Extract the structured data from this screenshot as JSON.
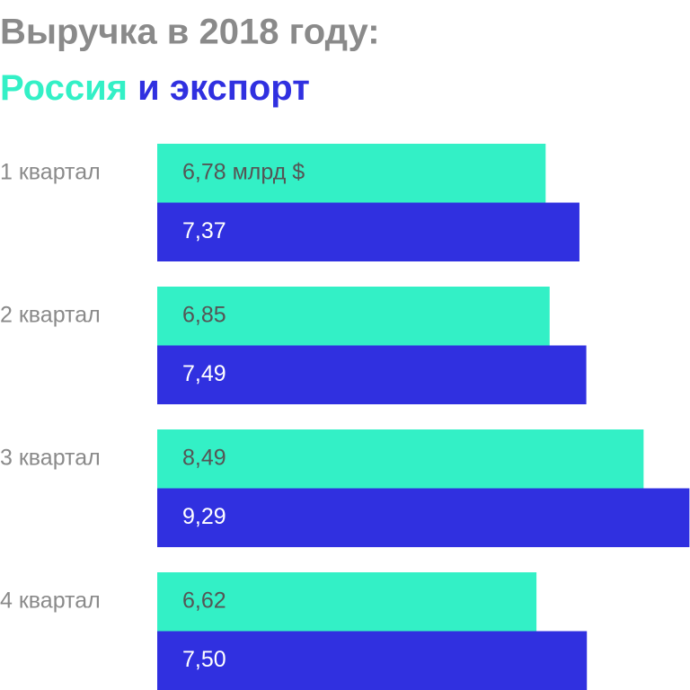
{
  "chart_data": {
    "type": "bar",
    "orientation": "horizontal",
    "title": "Выручка в 2018 году:",
    "legend_separator": "и",
    "categories": [
      "1 квартал",
      "2 квартал",
      "3 квартал",
      "4 квартал"
    ],
    "series": [
      {
        "name": "Россия",
        "color": "#33f0c6",
        "label_color": "#555555",
        "values": [
          6.78,
          6.85,
          8.49,
          6.62
        ],
        "value_labels": [
          "6,78 млрд $",
          "6,85",
          "8,49",
          "6,62"
        ]
      },
      {
        "name": "экспорт",
        "color": "#3030e0",
        "label_color": "#ffffff",
        "values": [
          7.37,
          7.49,
          9.29,
          7.5
        ],
        "value_labels": [
          "7,37",
          "7,49",
          "9,29",
          "7,50"
        ]
      }
    ],
    "xlim": [
      0,
      9.3
    ]
  }
}
